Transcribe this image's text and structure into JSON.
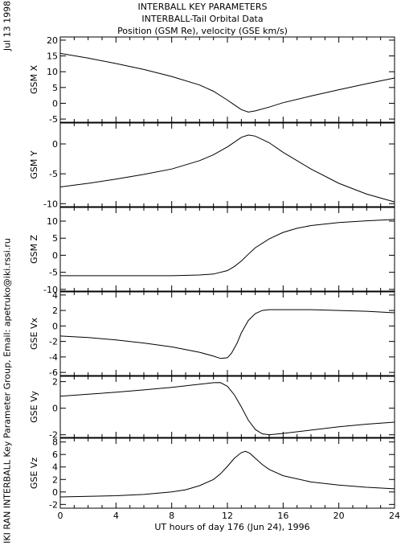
{
  "header": {
    "title1": "INTERBALL KEY PARAMETERS",
    "title2": "INTERBALL-Tail Orbital Data",
    "title3": "Position (GSM Re), velocity (GSE km/s)"
  },
  "side": {
    "date": "Jul 13 1998",
    "credit": "IKI RAN INTERBALL Key Parameter Group, Email: apetruko@iki.rssi.ru"
  },
  "colors": {
    "line": "#000000",
    "background": "#ffffff"
  },
  "chart_data": {
    "type": "line",
    "xlabel": "UT hours of day 176 (Jun 24), 1996",
    "x_ticks": [
      "0",
      "4",
      "8",
      "12",
      "16",
      "20",
      "24"
    ],
    "xlim": [
      0,
      24
    ],
    "panels": [
      {
        "ylabel": "GSM X",
        "ylim": [
          -6,
          21
        ],
        "y_ticks": [
          "-5",
          "0",
          "5",
          "10",
          "15",
          "20"
        ],
        "x": [
          0,
          2,
          4,
          6,
          8,
          10,
          11,
          12,
          12.5,
          13,
          13.5,
          14,
          15,
          16,
          18,
          20,
          22,
          24
        ],
        "values": [
          15.8,
          14.3,
          12.6,
          10.7,
          8.5,
          5.8,
          3.8,
          1.0,
          -0.5,
          -2.0,
          -2.8,
          -2.4,
          -1.2,
          0.2,
          2.3,
          4.3,
          6.2,
          8.0
        ]
      },
      {
        "ylabel": "GSM Y",
        "ylim": [
          -10.5,
          3.5
        ],
        "y_ticks": [
          "-10",
          "-5",
          "0"
        ],
        "x": [
          0,
          2,
          4,
          6,
          8,
          10,
          11,
          12,
          12.5,
          13,
          13.5,
          14,
          15,
          16,
          18,
          20,
          22,
          24
        ],
        "values": [
          -7.2,
          -6.6,
          -5.9,
          -5.1,
          -4.2,
          -2.8,
          -1.8,
          -0.5,
          0.3,
          1.1,
          1.5,
          1.3,
          0.2,
          -1.4,
          -4.2,
          -6.6,
          -8.4,
          -9.7
        ]
      },
      {
        "ylabel": "GSM Z",
        "ylim": [
          -10.5,
          14
        ],
        "y_ticks": [
          "-10",
          "-5",
          "0",
          "5",
          "10"
        ],
        "x": [
          0,
          2,
          4,
          6,
          8,
          10,
          11,
          12,
          12.5,
          13,
          13.5,
          14,
          15,
          16,
          17,
          18,
          20,
          22,
          24
        ],
        "values": [
          -6.0,
          -6.0,
          -6.0,
          -6.0,
          -6.0,
          -5.8,
          -5.5,
          -4.5,
          -3.3,
          -1.7,
          0.3,
          2.2,
          4.8,
          6.7,
          7.9,
          8.7,
          9.6,
          10.1,
          10.5
        ]
      },
      {
        "ylabel": "GSE Vx",
        "ylim": [
          -6.4,
          4.4
        ],
        "y_ticks": [
          "-6",
          "-4",
          "-2",
          "0",
          "2",
          "4"
        ],
        "x": [
          0,
          2,
          4,
          6,
          8,
          10,
          11,
          11.5,
          12,
          12.3,
          12.7,
          13,
          13.5,
          14,
          14.5,
          15,
          16,
          18,
          20,
          22,
          24
        ],
        "values": [
          -1.3,
          -1.5,
          -1.8,
          -2.2,
          -2.7,
          -3.4,
          -3.9,
          -4.2,
          -4.1,
          -3.5,
          -2.2,
          -0.9,
          0.7,
          1.6,
          2.0,
          2.1,
          2.1,
          2.1,
          2.0,
          1.9,
          1.7
        ]
      },
      {
        "ylabel": "GSE Vy",
        "ylim": [
          -2.2,
          2.4
        ],
        "y_ticks": [
          "-2",
          "0",
          "2"
        ],
        "x": [
          0,
          2,
          4,
          6,
          8,
          10,
          11,
          11.5,
          12,
          12.5,
          13,
          13.5,
          14,
          14.5,
          15,
          16,
          18,
          20,
          22,
          24
        ],
        "values": [
          0.9,
          1.05,
          1.2,
          1.38,
          1.57,
          1.8,
          1.92,
          1.93,
          1.65,
          1.0,
          0.1,
          -0.9,
          -1.6,
          -1.93,
          -2.0,
          -1.9,
          -1.65,
          -1.4,
          -1.2,
          -1.05
        ]
      },
      {
        "ylabel": "GSE Vz",
        "ylim": [
          -2.6,
          8.6
        ],
        "y_ticks": [
          "-2",
          "0",
          "2",
          "4",
          "6",
          "8"
        ],
        "x": [
          0,
          2,
          4,
          6,
          8,
          9,
          10,
          11,
          11.5,
          12,
          12.5,
          13,
          13.3,
          13.6,
          14,
          14.5,
          15,
          16,
          18,
          20,
          22,
          24
        ],
        "values": [
          -0.8,
          -0.7,
          -0.6,
          -0.4,
          0.0,
          0.35,
          1.0,
          2.0,
          2.9,
          4.1,
          5.4,
          6.3,
          6.5,
          6.2,
          5.4,
          4.4,
          3.6,
          2.6,
          1.6,
          1.1,
          0.75,
          0.5
        ]
      }
    ]
  }
}
